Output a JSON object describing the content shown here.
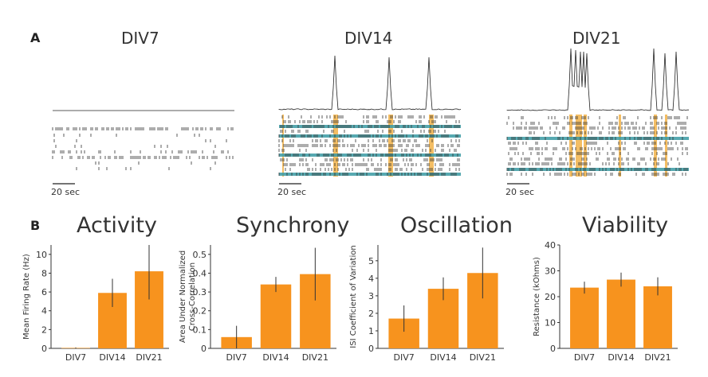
{
  "panel_a_label": "A",
  "panel_b_label": "B",
  "raster": {
    "scale_label": "20 sec",
    "panels": [
      {
        "title": "DIV7"
      },
      {
        "title": "DIV14"
      },
      {
        "title": "DIV21"
      }
    ],
    "colors": {
      "spike": "#333333",
      "highlight_row": "#3a9aa3",
      "burst_band": "#f0a830",
      "trace": "#222222"
    }
  },
  "chart_data": [
    {
      "type": "bar",
      "title": "Activity",
      "ylabel": "Mean Firing Rate (Hz)",
      "categories": [
        "DIV7",
        "DIV14",
        "DIV21"
      ],
      "values": [
        0.05,
        5.9,
        8.2
      ],
      "errors": [
        0.05,
        1.5,
        3.0
      ],
      "ylim": [
        0,
        11
      ],
      "yticks": [
        0,
        2,
        4,
        6,
        8,
        10
      ],
      "color": "#f7931e"
    },
    {
      "type": "bar",
      "title": "Synchrony",
      "ylabel": "Area Under Normalized Cross-Correlation",
      "categories": [
        "DIV7",
        "DIV14",
        "DIV21"
      ],
      "values": [
        0.06,
        0.34,
        0.395
      ],
      "errors": [
        0.06,
        0.04,
        0.14
      ],
      "ylim": [
        0,
        0.55
      ],
      "yticks": [
        0,
        0.1,
        0.2,
        0.3,
        0.4,
        0.5
      ],
      "color": "#f7931e"
    },
    {
      "type": "bar",
      "title": "Oscillation",
      "ylabel": "ISI Coefficient of Variation",
      "categories": [
        "DIV7",
        "DIV14",
        "DIV21"
      ],
      "values": [
        1.7,
        3.4,
        4.3
      ],
      "errors": [
        0.75,
        0.65,
        1.45
      ],
      "ylim": [
        0,
        5.9
      ],
      "yticks": [
        0,
        1,
        2,
        3,
        4,
        5
      ],
      "color": "#f7931e"
    },
    {
      "type": "bar",
      "title": "Viability",
      "ylabel": "Resistance (kOhms)",
      "categories": [
        "DIV7",
        "DIV14",
        "DIV21"
      ],
      "values": [
        23.5,
        26.6,
        24.0
      ],
      "errors": [
        2.3,
        2.7,
        3.5
      ],
      "ylim": [
        0,
        40
      ],
      "yticks": [
        0,
        10,
        20,
        30,
        40
      ],
      "color": "#f7931e"
    }
  ]
}
